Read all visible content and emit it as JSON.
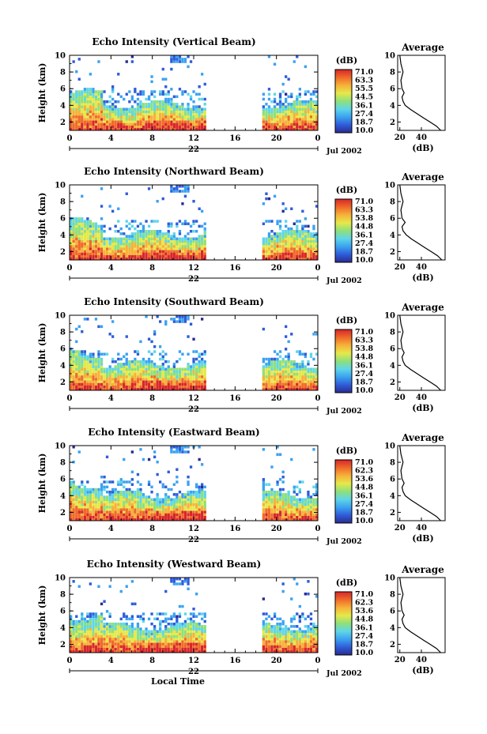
{
  "chart_data": [
    {
      "type": "heatmap",
      "title": "Echo Intensity (Vertical Beam)",
      "ylabel": "Height (km)",
      "x_ticks": [
        "0",
        "4",
        "8",
        "12",
        "16",
        "20",
        "0"
      ],
      "y_ticks": [
        "2",
        "4",
        "6",
        "8",
        "10"
      ],
      "day_label": "22",
      "date_label": "Jul 2002",
      "xlim": [
        0,
        24
      ],
      "ylim": [
        1,
        10
      ],
      "data_gap_hours": [
        13.2,
        18.5
      ],
      "colorbar_unit": "(dB)",
      "colorbar_ticks": [
        "71.0",
        "63.3",
        "55.5",
        "44.5",
        "36.1",
        "27.4",
        "18.7",
        "10.0"
      ],
      "average_title": "Average",
      "average_xlabel": "(dB)",
      "average_xticks": [
        "20",
        "40"
      ],
      "average_profile": {
        "height_km": [
          1,
          1.5,
          2,
          2.5,
          3,
          3.5,
          4,
          4.5,
          5,
          5.5,
          6,
          7,
          8,
          9,
          10
        ],
        "db": [
          58,
          54,
          48,
          42,
          36,
          30,
          25,
          23,
          22,
          24,
          22,
          21,
          23,
          21,
          20
        ]
      }
    },
    {
      "type": "heatmap",
      "title": "Echo Intensity (Northward Beam)",
      "ylabel": "Height (km)",
      "x_ticks": [
        "0",
        "4",
        "8",
        "12",
        "16",
        "20",
        "0"
      ],
      "y_ticks": [
        "2",
        "4",
        "6",
        "8",
        "10"
      ],
      "day_label": "22",
      "date_label": "Jul 2002",
      "xlim": [
        0,
        24
      ],
      "ylim": [
        1,
        10
      ],
      "data_gap_hours": [
        13.2,
        18.5
      ],
      "colorbar_unit": "(dB)",
      "colorbar_ticks": [
        "71.0",
        "63.3",
        "53.8",
        "44.8",
        "36.1",
        "27.4",
        "18.7",
        "10.0"
      ],
      "average_title": "Average",
      "average_xlabel": "(dB)",
      "average_xticks": [
        "20",
        "40"
      ],
      "average_profile": {
        "height_km": [
          1,
          1.5,
          2,
          2.5,
          3,
          3.5,
          4,
          4.5,
          5,
          5.5,
          6,
          7,
          8,
          9,
          10
        ],
        "db": [
          59,
          55,
          49,
          43,
          37,
          31,
          26,
          23,
          22,
          25,
          22,
          21,
          23,
          21,
          20
        ]
      }
    },
    {
      "type": "heatmap",
      "title": "Echo Intensity (Southward Beam)",
      "ylabel": "Height (km)",
      "x_ticks": [
        "0",
        "4",
        "8",
        "12",
        "16",
        "20",
        "0"
      ],
      "y_ticks": [
        "2",
        "4",
        "6",
        "8",
        "10"
      ],
      "day_label": "22",
      "date_label": "Jul 2002",
      "xlim": [
        0,
        24
      ],
      "ylim": [
        1,
        10
      ],
      "data_gap_hours": [
        13.2,
        18.5
      ],
      "colorbar_unit": "(dB)",
      "colorbar_ticks": [
        "71.0",
        "63.3",
        "53.8",
        "44.8",
        "36.1",
        "27.4",
        "18.7",
        "10.0"
      ],
      "average_title": "Average",
      "average_xlabel": "(dB)",
      "average_xticks": [
        "20",
        "40"
      ],
      "average_profile": {
        "height_km": [
          1,
          1.5,
          2,
          2.5,
          3,
          3.5,
          4,
          4.5,
          5,
          5.5,
          6,
          7,
          8,
          9,
          10
        ],
        "db": [
          58,
          54,
          48,
          42,
          36,
          30,
          25,
          23,
          22,
          24,
          22,
          21,
          23,
          21,
          20
        ]
      }
    },
    {
      "type": "heatmap",
      "title": "Echo Intensity (Eastward Beam)",
      "ylabel": "Height (km)",
      "x_ticks": [
        "0",
        "4",
        "8",
        "12",
        "16",
        "20",
        "0"
      ],
      "y_ticks": [
        "2",
        "4",
        "6",
        "8",
        "10"
      ],
      "day_label": "22",
      "date_label": "Jul 2002",
      "xlim": [
        0,
        24
      ],
      "ylim": [
        1,
        10
      ],
      "data_gap_hours": [
        13.2,
        18.5
      ],
      "colorbar_unit": "(dB)",
      "colorbar_ticks": [
        "71.0",
        "62.3",
        "53.6",
        "44.8",
        "36.1",
        "27.4",
        "18.7",
        "10.0"
      ],
      "average_title": "Average",
      "average_xlabel": "(dB)",
      "average_xticks": [
        "20",
        "40"
      ],
      "average_profile": {
        "height_km": [
          1,
          1.5,
          2,
          2.5,
          3,
          3.5,
          4,
          4.5,
          5,
          5.5,
          6,
          7,
          8,
          9,
          10
        ],
        "db": [
          58,
          54,
          48,
          42,
          36,
          30,
          25,
          23,
          22,
          24,
          22,
          21,
          23,
          21,
          20
        ]
      }
    },
    {
      "type": "heatmap",
      "title": "Echo Intensity (Westward Beam)",
      "ylabel": "Height (km)",
      "xlabel": "Local Time",
      "x_ticks": [
        "0",
        "4",
        "8",
        "12",
        "16",
        "20",
        "0"
      ],
      "y_ticks": [
        "2",
        "4",
        "6",
        "8",
        "10"
      ],
      "day_label": "22",
      "date_label": "Jul 2002",
      "xlim": [
        0,
        24
      ],
      "ylim": [
        1,
        10
      ],
      "data_gap_hours": [
        13.2,
        18.5
      ],
      "colorbar_unit": "(dB)",
      "colorbar_ticks": [
        "71.0",
        "62.3",
        "53.6",
        "44.8",
        "36.1",
        "27.4",
        "18.7",
        "10.0"
      ],
      "average_title": "Average",
      "average_xlabel": "(dB)",
      "average_xticks": [
        "20",
        "40"
      ],
      "average_profile": {
        "height_km": [
          1,
          1.5,
          2,
          2.5,
          3,
          3.5,
          4,
          4.5,
          5,
          5.5,
          6,
          7,
          8,
          9,
          10
        ],
        "db": [
          58,
          54,
          48,
          42,
          36,
          30,
          25,
          23,
          22,
          24,
          22,
          21,
          23,
          21,
          20
        ]
      }
    }
  ],
  "colorscale": [
    "#2b2b8f",
    "#2f5cd9",
    "#3ba2f0",
    "#5fd6e8",
    "#8fe07a",
    "#e6e84a",
    "#f7b13a",
    "#ef6a2a",
    "#d8262a"
  ]
}
